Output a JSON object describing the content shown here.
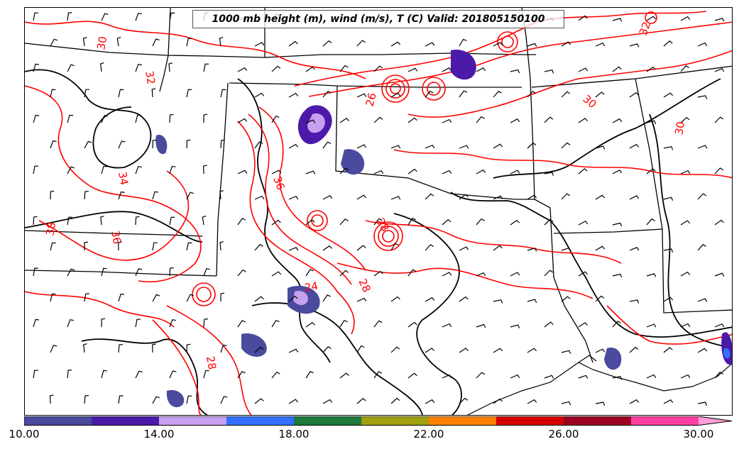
{
  "title": "1000 mb height (m), wind (m/s), T (C) Valid: 201805150100",
  "colorbar": {
    "colors": [
      "#4a4a9e",
      "#4b1aa8",
      "#c8a0f0",
      "#3370ff",
      "#1c7a3a",
      "#a0a010",
      "#ff7f00",
      "#d40000",
      "#9c0020",
      "#ff3fa0",
      "#ffa0d8"
    ],
    "tick_labels": [
      "10.00",
      "14.00",
      "18.00",
      "22.00",
      "26.00",
      "30.00"
    ]
  },
  "contour_labels": [
    "30",
    "32",
    "34",
    "36",
    "38",
    "36",
    "26",
    "28",
    "28",
    "24",
    "28",
    "30",
    "30",
    "32"
  ],
  "colors": {
    "temperature_contour": "#ff0000",
    "height_contour": "#000000",
    "wind_barb": "#000000",
    "border": "#000000"
  }
}
